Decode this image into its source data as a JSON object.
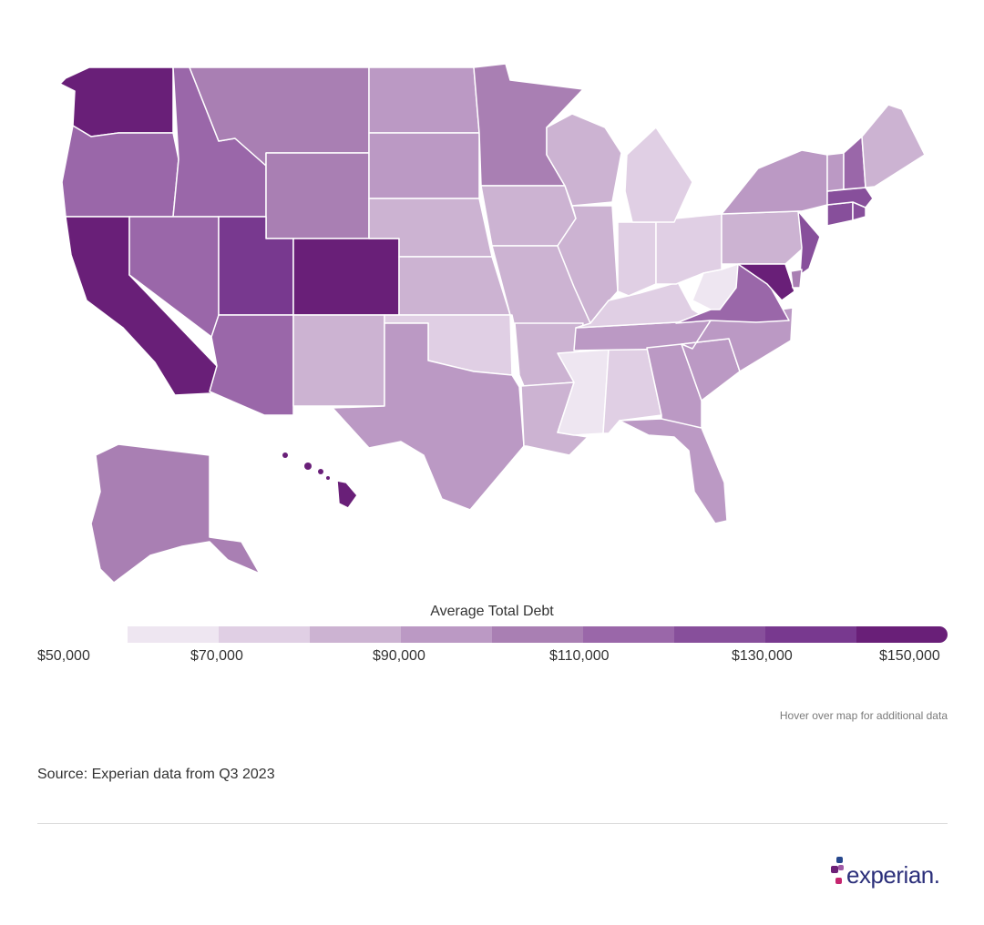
{
  "map": {
    "legend_title": "Average Total Debt",
    "scale_min": 50000,
    "scale_max": 150000,
    "tick_labels": [
      "$50,000",
      "$70,000",
      "$90,000",
      "$110,000",
      "$130,000",
      "$150,000"
    ],
    "tick_values": [
      50000,
      70000,
      90000,
      110000,
      130000,
      150000
    ],
    "color_scale": [
      "#eee6f1",
      "#e0cfe4",
      "#ccb3d2",
      "#bb99c4",
      "#a97fb3",
      "#9a67a9",
      "#874f9b",
      "#78398f",
      "#691f78"
    ],
    "hover_note": "Hover over map for additional data"
  },
  "footer": {
    "source": "Source: Experian data from Q3 2023",
    "logo_text": "experian."
  },
  "colors": {
    "dot_pink": "#c5256f",
    "dot_purple": "#6d2077",
    "dot_blue": "#26478d",
    "dot_violet": "#a05aa6",
    "logo_text": "#2b2f7a"
  }
}
